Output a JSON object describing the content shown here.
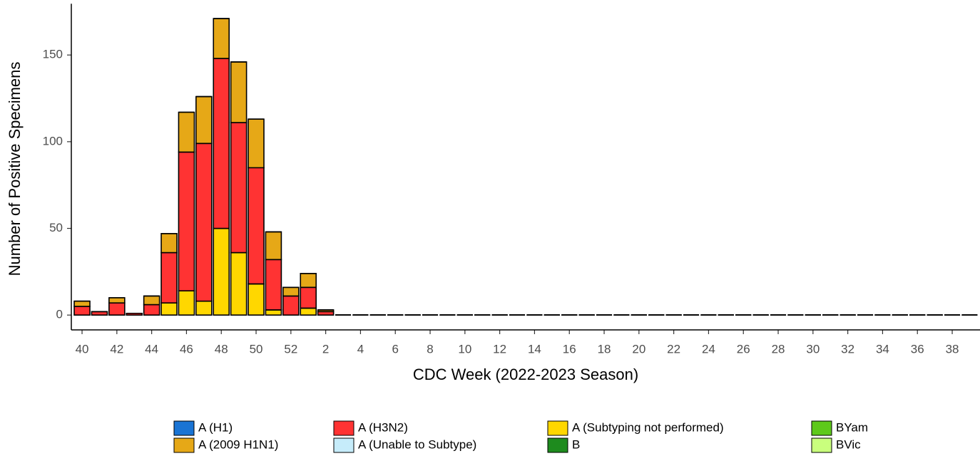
{
  "chart_data": {
    "type": "stacked-bar",
    "x_label": "CDC Week (2022-2023 Season)",
    "y_label": "Number of Positive Specimens",
    "categories": [
      "40",
      null,
      "42",
      null,
      "44",
      null,
      "46",
      null,
      "48",
      null,
      "50",
      null,
      "52",
      null,
      "2",
      null,
      "4",
      null,
      "6",
      null,
      "8",
      null,
      "10",
      null,
      "12",
      null,
      "14",
      null,
      "16",
      null,
      "18",
      null,
      "20",
      null,
      "22",
      null,
      "24",
      null,
      "26",
      null,
      "28",
      null,
      "30",
      null,
      "32",
      null,
      "34",
      null,
      "36",
      null,
      "38",
      null
    ],
    "ylim": [
      -8.55,
      179.55
    ],
    "yticks": [
      0,
      50,
      100,
      150
    ],
    "series": [
      {
        "name": "A (H1)",
        "color": "#1a74d4",
        "values": [
          0,
          0,
          0,
          0,
          0,
          0,
          0,
          0,
          0,
          0,
          0,
          0,
          0,
          0,
          0,
          0,
          0,
          0,
          0,
          0,
          0,
          0,
          0,
          0,
          0,
          0,
          0,
          0,
          0,
          0,
          0,
          0,
          0,
          0,
          0,
          0,
          0,
          0,
          0,
          0,
          0,
          0,
          0,
          0,
          0,
          0,
          0,
          0,
          0,
          0,
          0,
          0
        ]
      },
      {
        "name": "A (2009 H1N1)",
        "color": "#e6a817",
        "values": [
          3,
          0,
          3,
          0,
          5,
          11,
          23,
          27,
          23,
          35,
          28,
          16,
          5,
          8,
          1,
          0,
          0,
          0,
          0,
          0,
          0,
          0,
          0,
          0,
          0,
          0,
          0,
          0,
          0,
          0,
          0,
          0,
          0,
          0,
          0,
          0,
          0,
          0,
          0,
          0,
          0,
          0,
          0,
          0,
          0,
          0,
          0,
          0,
          0,
          0,
          0,
          0
        ]
      },
      {
        "name": "A (H3N2)",
        "color": "#ff3333",
        "values": [
          5,
          2,
          7,
          1,
          6,
          29,
          80,
          91,
          98,
          75,
          67,
          29,
          11,
          12,
          2,
          0,
          0,
          0,
          0,
          0,
          0,
          0,
          0,
          0,
          0,
          0,
          0,
          0,
          0,
          0,
          0,
          0,
          0,
          0,
          0,
          0,
          0,
          0,
          0,
          0,
          0,
          0,
          0,
          0,
          0,
          0,
          0,
          0,
          0,
          0,
          0,
          0
        ]
      },
      {
        "name": "A (Unable to Subtype)",
        "color": "#c6ecfa",
        "values": [
          0,
          0,
          0,
          0,
          0,
          0,
          0,
          0,
          0,
          0,
          0,
          0,
          0,
          0,
          0,
          0,
          0,
          0,
          0,
          0,
          0,
          0,
          0,
          0,
          0,
          0,
          0,
          0,
          0,
          0,
          0,
          0,
          0,
          0,
          0,
          0,
          0,
          0,
          0,
          0,
          0,
          0,
          0,
          0,
          0,
          0,
          0,
          0,
          0,
          0,
          0,
          0
        ]
      },
      {
        "name": "A (Subtyping not performed)",
        "color": "#ffd700",
        "values": [
          0,
          0,
          0,
          0,
          0,
          7,
          14,
          8,
          50,
          36,
          18,
          3,
          0,
          4,
          0,
          0,
          0,
          0,
          0,
          0,
          0,
          0,
          0,
          0,
          0,
          0,
          0,
          0,
          0,
          0,
          0,
          0,
          0,
          0,
          0,
          0,
          0,
          0,
          0,
          0,
          0,
          0,
          0,
          0,
          0,
          0,
          0,
          0,
          0,
          0,
          0,
          0
        ]
      },
      {
        "name": "B",
        "color": "#1e8b1e",
        "values": [
          0,
          0,
          0,
          0,
          0,
          0,
          0,
          0,
          0,
          0,
          0,
          0,
          0,
          0,
          0,
          0,
          0,
          0,
          0,
          0,
          0,
          0,
          0,
          0,
          0,
          0,
          0,
          0,
          0,
          0,
          0,
          0,
          0,
          0,
          0,
          0,
          0,
          0,
          0,
          0,
          0,
          0,
          0,
          0,
          0,
          0,
          0,
          0,
          0,
          0,
          0,
          0
        ]
      },
      {
        "name": "BYam",
        "color": "#5ec91b",
        "values": [
          0,
          0,
          0,
          0,
          0,
          0,
          0,
          0,
          0,
          0,
          0,
          0,
          0,
          0,
          0,
          0,
          0,
          0,
          0,
          0,
          0,
          0,
          0,
          0,
          0,
          0,
          0,
          0,
          0,
          0,
          0,
          0,
          0,
          0,
          0,
          0,
          0,
          0,
          0,
          0,
          0,
          0,
          0,
          0,
          0,
          0,
          0,
          0,
          0,
          0,
          0,
          0
        ]
      },
      {
        "name": "BVic",
        "color": "#c9ff7d",
        "values": [
          0,
          0,
          0,
          0,
          0,
          0,
          0,
          0,
          0,
          0,
          0,
          0,
          0,
          0,
          0,
          0,
          0,
          0,
          0,
          0,
          0,
          0,
          0,
          0,
          0,
          0,
          0,
          0,
          0,
          0,
          0,
          0,
          0,
          0,
          0,
          0,
          0,
          0,
          0,
          0,
          0,
          0,
          0,
          0,
          0,
          0,
          0,
          0,
          0,
          0,
          0,
          0
        ]
      }
    ]
  }
}
